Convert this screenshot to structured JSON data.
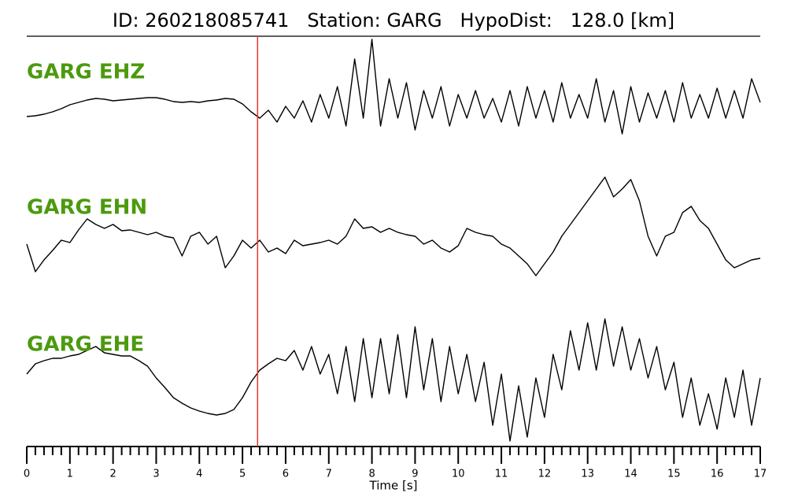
{
  "chart_data": {
    "type": "line",
    "title": "ID: 260218085741   Station: GARG   HypoDist:   128.0 [km]",
    "xlabel": "Time [s]",
    "name_color": "#4c9a0e",
    "x": [
      0,
      0.2,
      0.4,
      0.6,
      0.8,
      1,
      1.2,
      1.4,
      1.6,
      1.8,
      2,
      2.2,
      2.4,
      2.6,
      2.8,
      3,
      3.2,
      3.4,
      3.6,
      3.8,
      4,
      4.2,
      4.4,
      4.6,
      4.8,
      5,
      5.2,
      5.4,
      5.6,
      5.8,
      6,
      6.2,
      6.4,
      6.6,
      6.8,
      7,
      7.2,
      7.4,
      7.6,
      7.8,
      8,
      8.2,
      8.4,
      8.6,
      8.8,
      9,
      9.2,
      9.4,
      9.6,
      9.8,
      10,
      10.2,
      10.4,
      10.6,
      10.8,
      11,
      11.2,
      11.4,
      11.6,
      11.8,
      12,
      12.2,
      12.4,
      12.6,
      12.8,
      13,
      13.2,
      13.4,
      13.6,
      13.8,
      14,
      14.2,
      14.4,
      14.6,
      14.8,
      15,
      15.2,
      15.4,
      15.6,
      15.8,
      16,
      16.2,
      16.4,
      16.6,
      16.8,
      17
    ],
    "xlim": [
      0,
      17
    ],
    "xticks": [
      0,
      1,
      2,
      3,
      4,
      5,
      6,
      7,
      8,
      9,
      10,
      11,
      12,
      13,
      14,
      15,
      16,
      17
    ],
    "xminorticks": [
      0.2,
      0.4,
      0.6,
      0.8,
      1.2,
      1.4,
      1.6,
      1.8,
      2.2,
      2.4,
      2.6,
      2.8,
      3.2,
      3.4,
      3.6,
      3.8,
      4.2,
      4.4,
      4.6,
      4.8,
      5.2,
      5.4,
      5.6,
      5.8,
      6.2,
      6.4,
      6.6,
      6.8,
      7.2,
      7.4,
      7.6,
      7.8,
      8.2,
      8.4,
      8.6,
      8.8,
      9.2,
      9.4,
      9.6,
      9.8,
      10.2,
      10.4,
      10.6,
      10.8,
      11.2,
      11.4,
      11.6,
      11.8,
      12.2,
      12.4,
      12.6,
      12.8,
      13.2,
      13.4,
      13.6,
      13.8,
      14.2,
      14.4,
      14.6,
      14.8,
      15.2,
      15.4,
      15.6,
      15.8,
      16.2,
      16.4,
      16.6,
      16.8
    ],
    "vlines": [
      {
        "x": 5.35,
        "color": "#e8332c"
      }
    ],
    "series": [
      {
        "name": "GARG EHZ",
        "color": "#000000",
        "ylim": [
          -65,
          65
        ],
        "values": [
          -38,
          -37,
          -35,
          -32,
          -28,
          -23,
          -20,
          -17,
          -15,
          -16,
          -18,
          -17,
          -16,
          -15,
          -14,
          -14,
          -16,
          -19,
          -20,
          -19,
          -20,
          -18,
          -17,
          -15,
          -16,
          -22,
          -32,
          -40,
          -30,
          -45,
          -25,
          -40,
          -18,
          -45,
          -10,
          -40,
          0,
          -50,
          35,
          -40,
          60,
          -50,
          10,
          -40,
          5,
          -55,
          -5,
          -40,
          0,
          -50,
          -10,
          -40,
          -5,
          -40,
          -15,
          -45,
          -5,
          -50,
          0,
          -40,
          -5,
          -45,
          5,
          -40,
          -10,
          -40,
          10,
          -45,
          -5,
          -60,
          0,
          -45,
          -8,
          -40,
          -5,
          -45,
          5,
          -40,
          -10,
          -40,
          -2,
          -40,
          -5,
          -40,
          10,
          -20
        ]
      },
      {
        "name": "GARG EHN",
        "color": "#000000",
        "ylim": [
          -70,
          70
        ],
        "values": [
          -20,
          -55,
          -40,
          -28,
          -15,
          -18,
          -2,
          12,
          5,
          0,
          5,
          -3,
          -2,
          -5,
          -8,
          -5,
          -10,
          -12,
          -35,
          -10,
          -5,
          -20,
          -10,
          -50,
          -35,
          -15,
          -25,
          -15,
          -30,
          -25,
          -32,
          -15,
          -22,
          -20,
          -18,
          -15,
          -20,
          -10,
          12,
          0,
          2,
          -5,
          0,
          -5,
          -8,
          -10,
          -20,
          -15,
          -25,
          -30,
          -22,
          0,
          -5,
          -8,
          -10,
          -20,
          -25,
          -35,
          -45,
          -60,
          -45,
          -30,
          -10,
          5,
          20,
          35,
          50,
          65,
          40,
          50,
          62,
          35,
          -10,
          -35,
          -10,
          -5,
          20,
          28,
          10,
          0,
          -20,
          -40,
          -50,
          -45,
          -40,
          -38
        ]
      },
      {
        "name": "GARG EHE",
        "color": "#000000",
        "ylim": [
          -85,
          85
        ],
        "values": [
          5,
          18,
          22,
          25,
          25,
          28,
          30,
          35,
          40,
          32,
          30,
          28,
          28,
          22,
          15,
          0,
          -12,
          -25,
          -32,
          -38,
          -42,
          -45,
          -47,
          -45,
          -40,
          -25,
          -5,
          10,
          18,
          25,
          22,
          35,
          10,
          40,
          5,
          30,
          -20,
          40,
          -30,
          50,
          -25,
          50,
          -20,
          55,
          -25,
          65,
          -15,
          50,
          -30,
          40,
          -20,
          30,
          -30,
          20,
          -60,
          5,
          -80,
          -10,
          -75,
          0,
          -50,
          30,
          -15,
          60,
          10,
          70,
          10,
          75,
          15,
          65,
          10,
          50,
          0,
          40,
          -15,
          20,
          -50,
          0,
          -60,
          -20,
          -65,
          0,
          -50,
          10,
          -60,
          0
        ]
      }
    ]
  }
}
